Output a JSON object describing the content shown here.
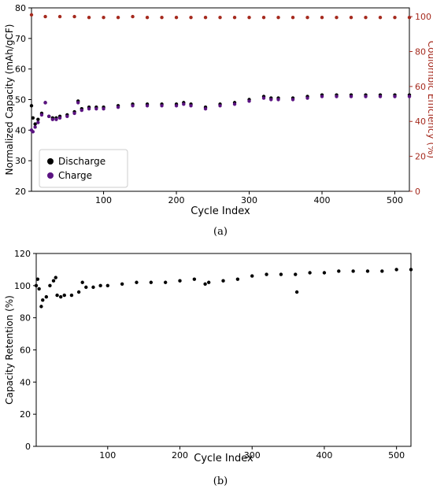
{
  "colors": {
    "discharge": "#000000",
    "charge": "#5b1382",
    "coulombic": "#a52a1e",
    "axis": "#000000"
  },
  "chart_data": [
    {
      "panel_label": "(a)",
      "type": "scatter",
      "xlabel": "Cycle Index",
      "ylabel_left": "Normalized Capacity (mAh/gCF)",
      "ylabel_right": "Coulombic Efficiency (%)",
      "xlim": [
        1,
        520
      ],
      "ylim_left": [
        20,
        80
      ],
      "ylim_right": [
        0,
        105
      ],
      "xticks": [
        100,
        200,
        300,
        400,
        500
      ],
      "yticks_left": [
        20,
        30,
        40,
        50,
        60,
        70,
        80
      ],
      "yticks_right": [
        0,
        20,
        40,
        60,
        80,
        100
      ],
      "grid": false,
      "legend_position": "lower-left",
      "series": [
        {
          "name": "Discharge",
          "axis": "left",
          "x": [
            1,
            3,
            6,
            10,
            15,
            20,
            25,
            30,
            35,
            40,
            50,
            60,
            65,
            70,
            80,
            90,
            100,
            120,
            140,
            160,
            180,
            200,
            210,
            220,
            240,
            260,
            280,
            300,
            320,
            330,
            340,
            360,
            380,
            400,
            420,
            440,
            460,
            480,
            500,
            520
          ],
          "y": [
            48,
            44,
            42,
            43.5,
            45.5,
            49,
            44.5,
            44,
            44,
            44.5,
            45,
            46,
            49.5,
            47,
            47.5,
            47.5,
            47.5,
            48,
            48.5,
            48.5,
            48.5,
            48.5,
            49,
            48.5,
            47.5,
            48.5,
            49,
            50,
            51,
            50.5,
            50.5,
            50.5,
            51,
            51.5,
            51.5,
            51.5,
            51.5,
            51.5,
            51.5,
            51.5
          ]
        },
        {
          "name": "Charge",
          "axis": "left",
          "x": [
            1,
            3,
            6,
            10,
            15,
            20,
            25,
            30,
            35,
            40,
            50,
            60,
            65,
            70,
            80,
            90,
            100,
            120,
            140,
            160,
            180,
            200,
            210,
            220,
            240,
            260,
            280,
            300,
            320,
            330,
            340,
            360,
            380,
            400,
            420,
            440,
            460,
            480,
            500,
            520
          ],
          "y": [
            40,
            39.5,
            41,
            42.5,
            45,
            49,
            44.5,
            43.5,
            43.5,
            44,
            44.5,
            45.5,
            49,
            46.5,
            47,
            47,
            47,
            47.5,
            48,
            48,
            48,
            48,
            48.5,
            48,
            47,
            48,
            48.5,
            49.5,
            50.5,
            50,
            50,
            50,
            50.5,
            51,
            51,
            51,
            51,
            51,
            51,
            51
          ]
        },
        {
          "name": "Coulombic Efficiency",
          "axis": "right",
          "x": [
            1,
            20,
            40,
            60,
            80,
            100,
            120,
            140,
            160,
            180,
            200,
            220,
            240,
            260,
            280,
            300,
            320,
            340,
            360,
            380,
            400,
            420,
            440,
            460,
            480,
            500,
            520
          ],
          "y": [
            101,
            100,
            100,
            100,
            99.5,
            99.5,
            99.5,
            100,
            99.5,
            99.5,
            99.5,
            99.5,
            99.5,
            99.5,
            99.5,
            99.5,
            99.5,
            99.5,
            99.5,
            99.5,
            99.5,
            99.5,
            99.5,
            99.5,
            99.5,
            99.5,
            99.5
          ]
        }
      ]
    },
    {
      "panel_label": "(b)",
      "type": "scatter",
      "xlabel": "Cycle Index",
      "ylabel": "Capacity Retention (%)",
      "xlim": [
        1,
        520
      ],
      "ylim": [
        0,
        120
      ],
      "xticks": [
        100,
        200,
        300,
        400,
        500
      ],
      "yticks": [
        0,
        20,
        40,
        60,
        80,
        100,
        120
      ],
      "grid": false,
      "series": [
        {
          "x": [
            1,
            3,
            5,
            8,
            10,
            15,
            20,
            25,
            28,
            30,
            35,
            40,
            50,
            60,
            65,
            70,
            80,
            90,
            100,
            120,
            140,
            160,
            180,
            200,
            220,
            235,
            240,
            260,
            280,
            300,
            320,
            340,
            360,
            362,
            380,
            400,
            420,
            440,
            460,
            480,
            500,
            520
          ],
          "y": [
            100,
            104,
            98,
            87,
            91,
            93,
            100,
            103,
            105,
            94,
            93,
            94,
            94,
            96,
            102,
            99,
            99,
            100,
            100,
            101,
            102,
            102,
            102,
            103,
            104,
            101,
            102,
            103,
            104,
            106,
            107,
            107,
            107,
            96,
            108,
            108,
            109,
            109,
            109,
            109,
            110,
            110
          ]
        }
      ]
    }
  ]
}
